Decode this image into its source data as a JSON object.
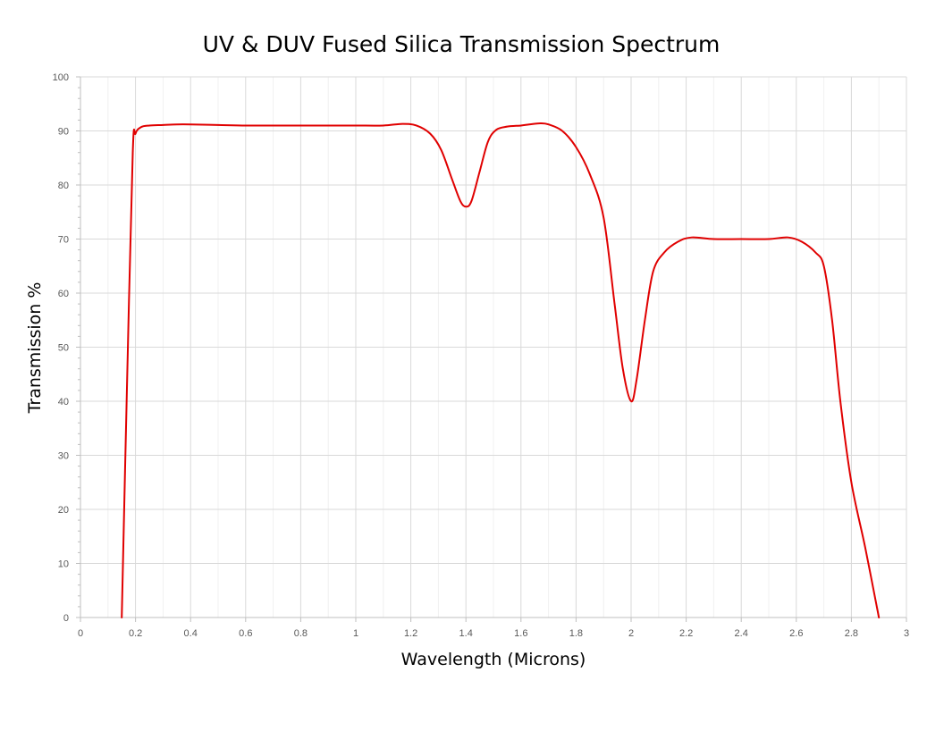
{
  "chart_data": {
    "type": "line",
    "title": "UV & DUV Fused Silica Transmission Spectrum",
    "xlabel": "Wavelength (Microns)",
    "ylabel": "Transmission %",
    "xlim": [
      0,
      3
    ],
    "ylim": [
      0,
      100
    ],
    "x_ticks": [
      "0",
      "0.2",
      "0.4",
      "0.6",
      "0.8",
      "1",
      "1.2",
      "1.4",
      "1.6",
      "1.8",
      "2",
      "2.2",
      "2.4",
      "2.6",
      "2.8",
      "3"
    ],
    "y_ticks": [
      "0",
      "10",
      "20",
      "30",
      "40",
      "50",
      "60",
      "70",
      "80",
      "90",
      "100"
    ],
    "grid": true,
    "legend": "none",
    "series": [
      {
        "color": "#e00000",
        "points": [
          [
            0.15,
            0
          ],
          [
            0.17,
            45
          ],
          [
            0.19,
            86
          ],
          [
            0.2,
            89.5
          ],
          [
            0.22,
            90.7
          ],
          [
            0.25,
            91.0
          ],
          [
            0.3,
            91.1
          ],
          [
            0.35,
            91.2
          ],
          [
            0.4,
            91.2
          ],
          [
            0.5,
            91.1
          ],
          [
            0.6,
            91.0
          ],
          [
            0.7,
            91.0
          ],
          [
            0.8,
            91.0
          ],
          [
            0.9,
            91.0
          ],
          [
            1.0,
            91.0
          ],
          [
            1.1,
            91.0
          ],
          [
            1.17,
            91.3
          ],
          [
            1.22,
            91.0
          ],
          [
            1.27,
            89.5
          ],
          [
            1.31,
            86.5
          ],
          [
            1.35,
            81
          ],
          [
            1.38,
            77
          ],
          [
            1.4,
            76
          ],
          [
            1.42,
            77
          ],
          [
            1.45,
            82.5
          ],
          [
            1.48,
            88
          ],
          [
            1.51,
            90.2
          ],
          [
            1.55,
            90.8
          ],
          [
            1.6,
            91.0
          ],
          [
            1.63,
            91.2
          ],
          [
            1.67,
            91.4
          ],
          [
            1.7,
            91.2
          ],
          [
            1.75,
            90
          ],
          [
            1.8,
            87
          ],
          [
            1.85,
            82
          ],
          [
            1.9,
            74
          ],
          [
            1.94,
            58
          ],
          [
            1.97,
            46
          ],
          [
            2.0,
            40
          ],
          [
            2.02,
            44
          ],
          [
            2.05,
            55
          ],
          [
            2.08,
            64
          ],
          [
            2.12,
            67.5
          ],
          [
            2.17,
            69.5
          ],
          [
            2.22,
            70.3
          ],
          [
            2.3,
            70.0
          ],
          [
            2.4,
            70.0
          ],
          [
            2.5,
            70.0
          ],
          [
            2.57,
            70.3
          ],
          [
            2.62,
            69.5
          ],
          [
            2.67,
            67.5
          ],
          [
            2.7,
            65
          ],
          [
            2.73,
            55
          ],
          [
            2.76,
            40
          ],
          [
            2.8,
            25
          ],
          [
            2.85,
            13
          ],
          [
            2.9,
            0
          ]
        ]
      }
    ]
  }
}
